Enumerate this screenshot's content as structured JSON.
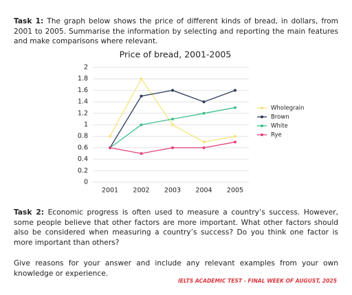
{
  "task1": {
    "label": "Task 1:",
    "text": "The graph below shows the price of different kinds of bread, in dollars, from 2001 to 2005. Summarise the information by selecting and reporting the main features and make comparisons where relevant."
  },
  "chart_data": {
    "type": "line",
    "title": "Price of bread, 2001-2005",
    "categories": [
      "2001",
      "2002",
      "2003",
      "2004",
      "2005"
    ],
    "series": [
      {
        "name": "Wholegrain",
        "color": "#f3e57c",
        "values": [
          0.8,
          1.8,
          1.0,
          0.7,
          0.8
        ]
      },
      {
        "name": "Brown",
        "color": "#2a3858",
        "values": [
          0.6,
          1.5,
          1.6,
          1.4,
          1.6
        ]
      },
      {
        "name": "White",
        "color": "#3dbf8a",
        "values": [
          0.6,
          1.0,
          1.1,
          1.2,
          1.3
        ]
      },
      {
        "name": "Rye",
        "color": "#e2407c",
        "values": [
          0.6,
          0.5,
          0.6,
          0.6,
          0.7
        ]
      }
    ],
    "ylim": [
      0,
      2
    ],
    "yticks": [
      0,
      0.2,
      0.4,
      0.6,
      0.8,
      1,
      1.2,
      1.4,
      1.6,
      1.8,
      2
    ],
    "grid": true,
    "legend": "right"
  },
  "task2": {
    "label": "Task 2:",
    "text": "Economic progress is often used to measure a country’s success. However, some people believe that other factors are more important. What other factors should also be considered when measuring a country’s success? Do you think one factor is more important than others?",
    "text2": "Give reasons for your answer and include any relevant examples from your own knowledge or experience."
  },
  "footer": "IELTS ACADEMIC TEST - FINAL WEEK OF AUGUST, 2025"
}
